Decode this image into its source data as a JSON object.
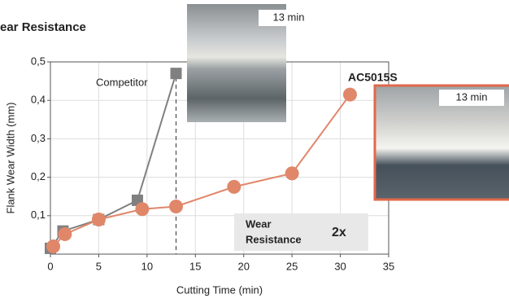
{
  "chart_data": {
    "type": "line",
    "title": "ear Resistance",
    "x_label": "Cutting Time (min)",
    "y_label": "Flank Wear Width (mm)",
    "xlim": [
      0,
      35
    ],
    "xticks": [
      0,
      5,
      10,
      15,
      20,
      25,
      30,
      35
    ],
    "ylim": [
      0,
      0.5
    ],
    "yticks": [
      {
        "value": 0.1,
        "label": "0,1"
      },
      {
        "value": 0.2,
        "label": "0,2"
      },
      {
        "value": 0.3,
        "label": "0,3"
      },
      {
        "value": 0.4,
        "label": "0,4"
      },
      {
        "value": 0.5,
        "label": "0,5"
      }
    ],
    "grid": true,
    "series": [
      {
        "name": "Competitor",
        "color": "#808080",
        "marker": "square",
        "x": [
          0,
          1.3,
          5,
          9,
          13
        ],
        "values": [
          0.015,
          0.06,
          0.09,
          0.14,
          0.47
        ]
      },
      {
        "name": "AC5015S",
        "color": "#e0876a",
        "marker": "circle",
        "x": [
          0.3,
          1.5,
          5,
          9.5,
          13,
          19,
          25,
          31
        ],
        "values": [
          0.02,
          0.052,
          0.09,
          0.117,
          0.124,
          0.175,
          0.21,
          0.415
        ]
      }
    ],
    "vline": 13,
    "photo_labels": [
      "13 min",
      "13 min"
    ],
    "callout": {
      "lines": [
        "Wear",
        "Resistance"
      ],
      "value": "2x"
    }
  }
}
